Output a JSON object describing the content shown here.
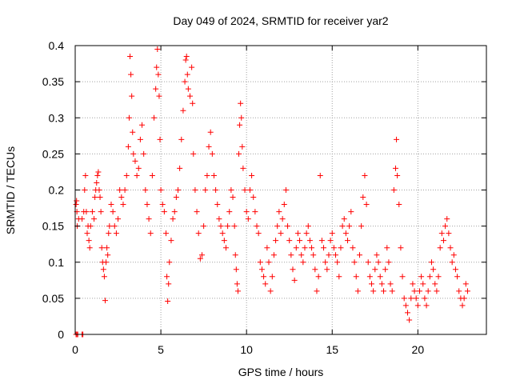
{
  "chart_data": {
    "type": "scatter",
    "title": "Day 049 of 2024, SRMTID for receiver yar2",
    "xlabel": "GPS time / hours",
    "ylabel": "SRMTID / TECUs",
    "xlim": [
      0,
      24
    ],
    "ylim": [
      0,
      0.4
    ],
    "xticks": [
      0,
      5,
      10,
      15,
      20
    ],
    "xtick_labels": [
      "0",
      "5",
      "10",
      "15",
      "20"
    ],
    "yticks": [
      0,
      0.05,
      0.1,
      0.15,
      0.2,
      0.25,
      0.3,
      0.35,
      0.4
    ],
    "ytick_labels": [
      "0",
      "0.05",
      "0.1",
      "0.15",
      "0.2",
      "0.25",
      "0.3",
      "0.35",
      "0.4"
    ],
    "grid": true,
    "marker": "+",
    "series": [
      {
        "name": "SRMTID",
        "color": "#ff0000",
        "points": [
          [
            0.05,
            0.0
          ],
          [
            0.1,
            0.0
          ],
          [
            0.15,
            0.0
          ],
          [
            0.4,
            0.0
          ],
          [
            0.45,
            0.0
          ],
          [
            0.05,
            0.18
          ],
          [
            0.08,
            0.185
          ],
          [
            0.1,
            0.17
          ],
          [
            0.12,
            0.15
          ],
          [
            0.2,
            0.16
          ],
          [
            0.4,
            0.16
          ],
          [
            0.5,
            0.17
          ],
          [
            0.55,
            0.2
          ],
          [
            0.6,
            0.22
          ],
          [
            0.65,
            0.17
          ],
          [
            0.7,
            0.14
          ],
          [
            0.75,
            0.15
          ],
          [
            0.8,
            0.13
          ],
          [
            0.85,
            0.12
          ],
          [
            0.9,
            0.15
          ],
          [
            1.0,
            0.17
          ],
          [
            1.1,
            0.16
          ],
          [
            1.15,
            0.19
          ],
          [
            1.2,
            0.2
          ],
          [
            1.25,
            0.21
          ],
          [
            1.3,
            0.22
          ],
          [
            1.35,
            0.225
          ],
          [
            1.4,
            0.2
          ],
          [
            1.45,
            0.19
          ],
          [
            1.5,
            0.17
          ],
          [
            1.55,
            0.12
          ],
          [
            1.6,
            0.1
          ],
          [
            1.65,
            0.09
          ],
          [
            1.7,
            0.08
          ],
          [
            1.75,
            0.047
          ],
          [
            1.8,
            0.1
          ],
          [
            1.85,
            0.12
          ],
          [
            1.9,
            0.11
          ],
          [
            1.95,
            0.14
          ],
          [
            2.0,
            0.15
          ],
          [
            2.1,
            0.18
          ],
          [
            2.2,
            0.17
          ],
          [
            2.3,
            0.15
          ],
          [
            2.4,
            0.14
          ],
          [
            2.5,
            0.16
          ],
          [
            2.6,
            0.2
          ],
          [
            2.7,
            0.19
          ],
          [
            2.8,
            0.18
          ],
          [
            2.9,
            0.2
          ],
          [
            3.0,
            0.22
          ],
          [
            3.1,
            0.26
          ],
          [
            3.15,
            0.3
          ],
          [
            3.2,
            0.385
          ],
          [
            3.25,
            0.36
          ],
          [
            3.3,
            0.33
          ],
          [
            3.35,
            0.28
          ],
          [
            3.4,
            0.25
          ],
          [
            3.5,
            0.24
          ],
          [
            3.6,
            0.22
          ],
          [
            3.7,
            0.23
          ],
          [
            3.8,
            0.27
          ],
          [
            3.9,
            0.29
          ],
          [
            4.0,
            0.25
          ],
          [
            4.1,
            0.2
          ],
          [
            4.2,
            0.18
          ],
          [
            4.3,
            0.16
          ],
          [
            4.4,
            0.14
          ],
          [
            4.5,
            0.22
          ],
          [
            4.6,
            0.3
          ],
          [
            4.7,
            0.34
          ],
          [
            4.75,
            0.37
          ],
          [
            4.8,
            0.395
          ],
          [
            4.85,
            0.36
          ],
          [
            4.9,
            0.33
          ],
          [
            4.95,
            0.27
          ],
          [
            5.0,
            0.2
          ],
          [
            5.1,
            0.18
          ],
          [
            5.2,
            0.17
          ],
          [
            5.3,
            0.14
          ],
          [
            5.35,
            0.08
          ],
          [
            5.4,
            0.046
          ],
          [
            5.45,
            0.07
          ],
          [
            5.5,
            0.1
          ],
          [
            5.6,
            0.13
          ],
          [
            5.7,
            0.16
          ],
          [
            5.8,
            0.17
          ],
          [
            5.9,
            0.19
          ],
          [
            6.0,
            0.2
          ],
          [
            6.1,
            0.23
          ],
          [
            6.2,
            0.27
          ],
          [
            6.3,
            0.31
          ],
          [
            6.4,
            0.35
          ],
          [
            6.45,
            0.38
          ],
          [
            6.5,
            0.385
          ],
          [
            6.55,
            0.36
          ],
          [
            6.6,
            0.34
          ],
          [
            6.7,
            0.33
          ],
          [
            6.8,
            0.37
          ],
          [
            6.85,
            0.32
          ],
          [
            6.9,
            0.25
          ],
          [
            7.0,
            0.2
          ],
          [
            7.1,
            0.17
          ],
          [
            7.2,
            0.14
          ],
          [
            7.3,
            0.105
          ],
          [
            7.4,
            0.11
          ],
          [
            7.5,
            0.15
          ],
          [
            7.6,
            0.2
          ],
          [
            7.7,
            0.22
          ],
          [
            7.8,
            0.26
          ],
          [
            7.9,
            0.28
          ],
          [
            8.0,
            0.25
          ],
          [
            8.1,
            0.22
          ],
          [
            8.2,
            0.2
          ],
          [
            8.3,
            0.18
          ],
          [
            8.4,
            0.16
          ],
          [
            8.5,
            0.15
          ],
          [
            8.6,
            0.14
          ],
          [
            8.7,
            0.13
          ],
          [
            8.8,
            0.12
          ],
          [
            8.9,
            0.15
          ],
          [
            9.0,
            0.17
          ],
          [
            9.1,
            0.2
          ],
          [
            9.2,
            0.19
          ],
          [
            9.3,
            0.15
          ],
          [
            9.35,
            0.11
          ],
          [
            9.4,
            0.09
          ],
          [
            9.45,
            0.07
          ],
          [
            9.5,
            0.06
          ],
          [
            9.55,
            0.25
          ],
          [
            9.6,
            0.29
          ],
          [
            9.65,
            0.32
          ],
          [
            9.7,
            0.3
          ],
          [
            9.75,
            0.26
          ],
          [
            9.8,
            0.23
          ],
          [
            9.9,
            0.2
          ],
          [
            10.0,
            0.17
          ],
          [
            10.1,
            0.16
          ],
          [
            10.2,
            0.2
          ],
          [
            10.3,
            0.22
          ],
          [
            10.4,
            0.19
          ],
          [
            10.5,
            0.17
          ],
          [
            10.6,
            0.15
          ],
          [
            10.7,
            0.14
          ],
          [
            10.8,
            0.1
          ],
          [
            10.9,
            0.09
          ],
          [
            11.0,
            0.08
          ],
          [
            11.1,
            0.07
          ],
          [
            11.2,
            0.12
          ],
          [
            11.3,
            0.1
          ],
          [
            11.4,
            0.06
          ],
          [
            11.5,
            0.08
          ],
          [
            11.6,
            0.11
          ],
          [
            11.7,
            0.13
          ],
          [
            11.8,
            0.15
          ],
          [
            11.9,
            0.17
          ],
          [
            12.0,
            0.14
          ],
          [
            12.1,
            0.16
          ],
          [
            12.2,
            0.18
          ],
          [
            12.3,
            0.2
          ],
          [
            12.4,
            0.15
          ],
          [
            12.5,
            0.13
          ],
          [
            12.6,
            0.11
          ],
          [
            12.7,
            0.09
          ],
          [
            12.8,
            0.075
          ],
          [
            12.9,
            0.12
          ],
          [
            13.0,
            0.14
          ],
          [
            13.1,
            0.13
          ],
          [
            13.2,
            0.11
          ],
          [
            13.3,
            0.1
          ],
          [
            13.4,
            0.12
          ],
          [
            13.5,
            0.14
          ],
          [
            13.6,
            0.15
          ],
          [
            13.7,
            0.13
          ],
          [
            13.8,
            0.12
          ],
          [
            13.9,
            0.11
          ],
          [
            14.0,
            0.09
          ],
          [
            14.1,
            0.06
          ],
          [
            14.2,
            0.08
          ],
          [
            14.3,
            0.22
          ],
          [
            14.4,
            0.13
          ],
          [
            14.5,
            0.12
          ],
          [
            14.6,
            0.1
          ],
          [
            14.7,
            0.09
          ],
          [
            14.8,
            0.11
          ],
          [
            14.9,
            0.13
          ],
          [
            15.0,
            0.14
          ],
          [
            15.1,
            0.12
          ],
          [
            15.2,
            0.11
          ],
          [
            15.3,
            0.1
          ],
          [
            15.4,
            0.08
          ],
          [
            15.5,
            0.12
          ],
          [
            15.6,
            0.15
          ],
          [
            15.7,
            0.16
          ],
          [
            15.8,
            0.14
          ],
          [
            15.9,
            0.13
          ],
          [
            16.0,
            0.15
          ],
          [
            16.1,
            0.17
          ],
          [
            16.2,
            0.12
          ],
          [
            16.3,
            0.1
          ],
          [
            16.4,
            0.08
          ],
          [
            16.5,
            0.06
          ],
          [
            16.6,
            0.11
          ],
          [
            16.7,
            0.15
          ],
          [
            16.8,
            0.19
          ],
          [
            16.9,
            0.22
          ],
          [
            17.0,
            0.18
          ],
          [
            17.1,
            0.1
          ],
          [
            17.2,
            0.08
          ],
          [
            17.3,
            0.07
          ],
          [
            17.4,
            0.06
          ],
          [
            17.5,
            0.09
          ],
          [
            17.6,
            0.11
          ],
          [
            17.7,
            0.1
          ],
          [
            17.8,
            0.08
          ],
          [
            17.9,
            0.07
          ],
          [
            18.0,
            0.06
          ],
          [
            18.1,
            0.09
          ],
          [
            18.2,
            0.12
          ],
          [
            18.3,
            0.1
          ],
          [
            18.4,
            0.07
          ],
          [
            18.5,
            0.06
          ],
          [
            18.6,
            0.2
          ],
          [
            18.7,
            0.23
          ],
          [
            18.75,
            0.27
          ],
          [
            18.8,
            0.22
          ],
          [
            18.9,
            0.18
          ],
          [
            19.0,
            0.12
          ],
          [
            19.1,
            0.08
          ],
          [
            19.2,
            0.05
          ],
          [
            19.3,
            0.04
          ],
          [
            19.4,
            0.03
          ],
          [
            19.5,
            0.02
          ],
          [
            19.6,
            0.05
          ],
          [
            19.7,
            0.07
          ],
          [
            19.8,
            0.06
          ],
          [
            19.9,
            0.05
          ],
          [
            20.0,
            0.04
          ],
          [
            20.1,
            0.06
          ],
          [
            20.2,
            0.08
          ],
          [
            20.3,
            0.07
          ],
          [
            20.4,
            0.05
          ],
          [
            20.5,
            0.04
          ],
          [
            20.6,
            0.06
          ],
          [
            20.7,
            0.08
          ],
          [
            20.8,
            0.1
          ],
          [
            20.9,
            0.09
          ],
          [
            21.0,
            0.07
          ],
          [
            21.1,
            0.06
          ],
          [
            21.2,
            0.08
          ],
          [
            21.3,
            0.12
          ],
          [
            21.4,
            0.14
          ],
          [
            21.5,
            0.13
          ],
          [
            21.6,
            0.15
          ],
          [
            21.7,
            0.16
          ],
          [
            21.8,
            0.14
          ],
          [
            21.9,
            0.12
          ],
          [
            22.0,
            0.1
          ],
          [
            22.1,
            0.11
          ],
          [
            22.2,
            0.09
          ],
          [
            22.3,
            0.08
          ],
          [
            22.4,
            0.06
          ],
          [
            22.5,
            0.05
          ],
          [
            22.6,
            0.04
          ],
          [
            22.7,
            0.05
          ],
          [
            22.8,
            0.07
          ],
          [
            22.9,
            0.06
          ]
        ]
      }
    ]
  }
}
